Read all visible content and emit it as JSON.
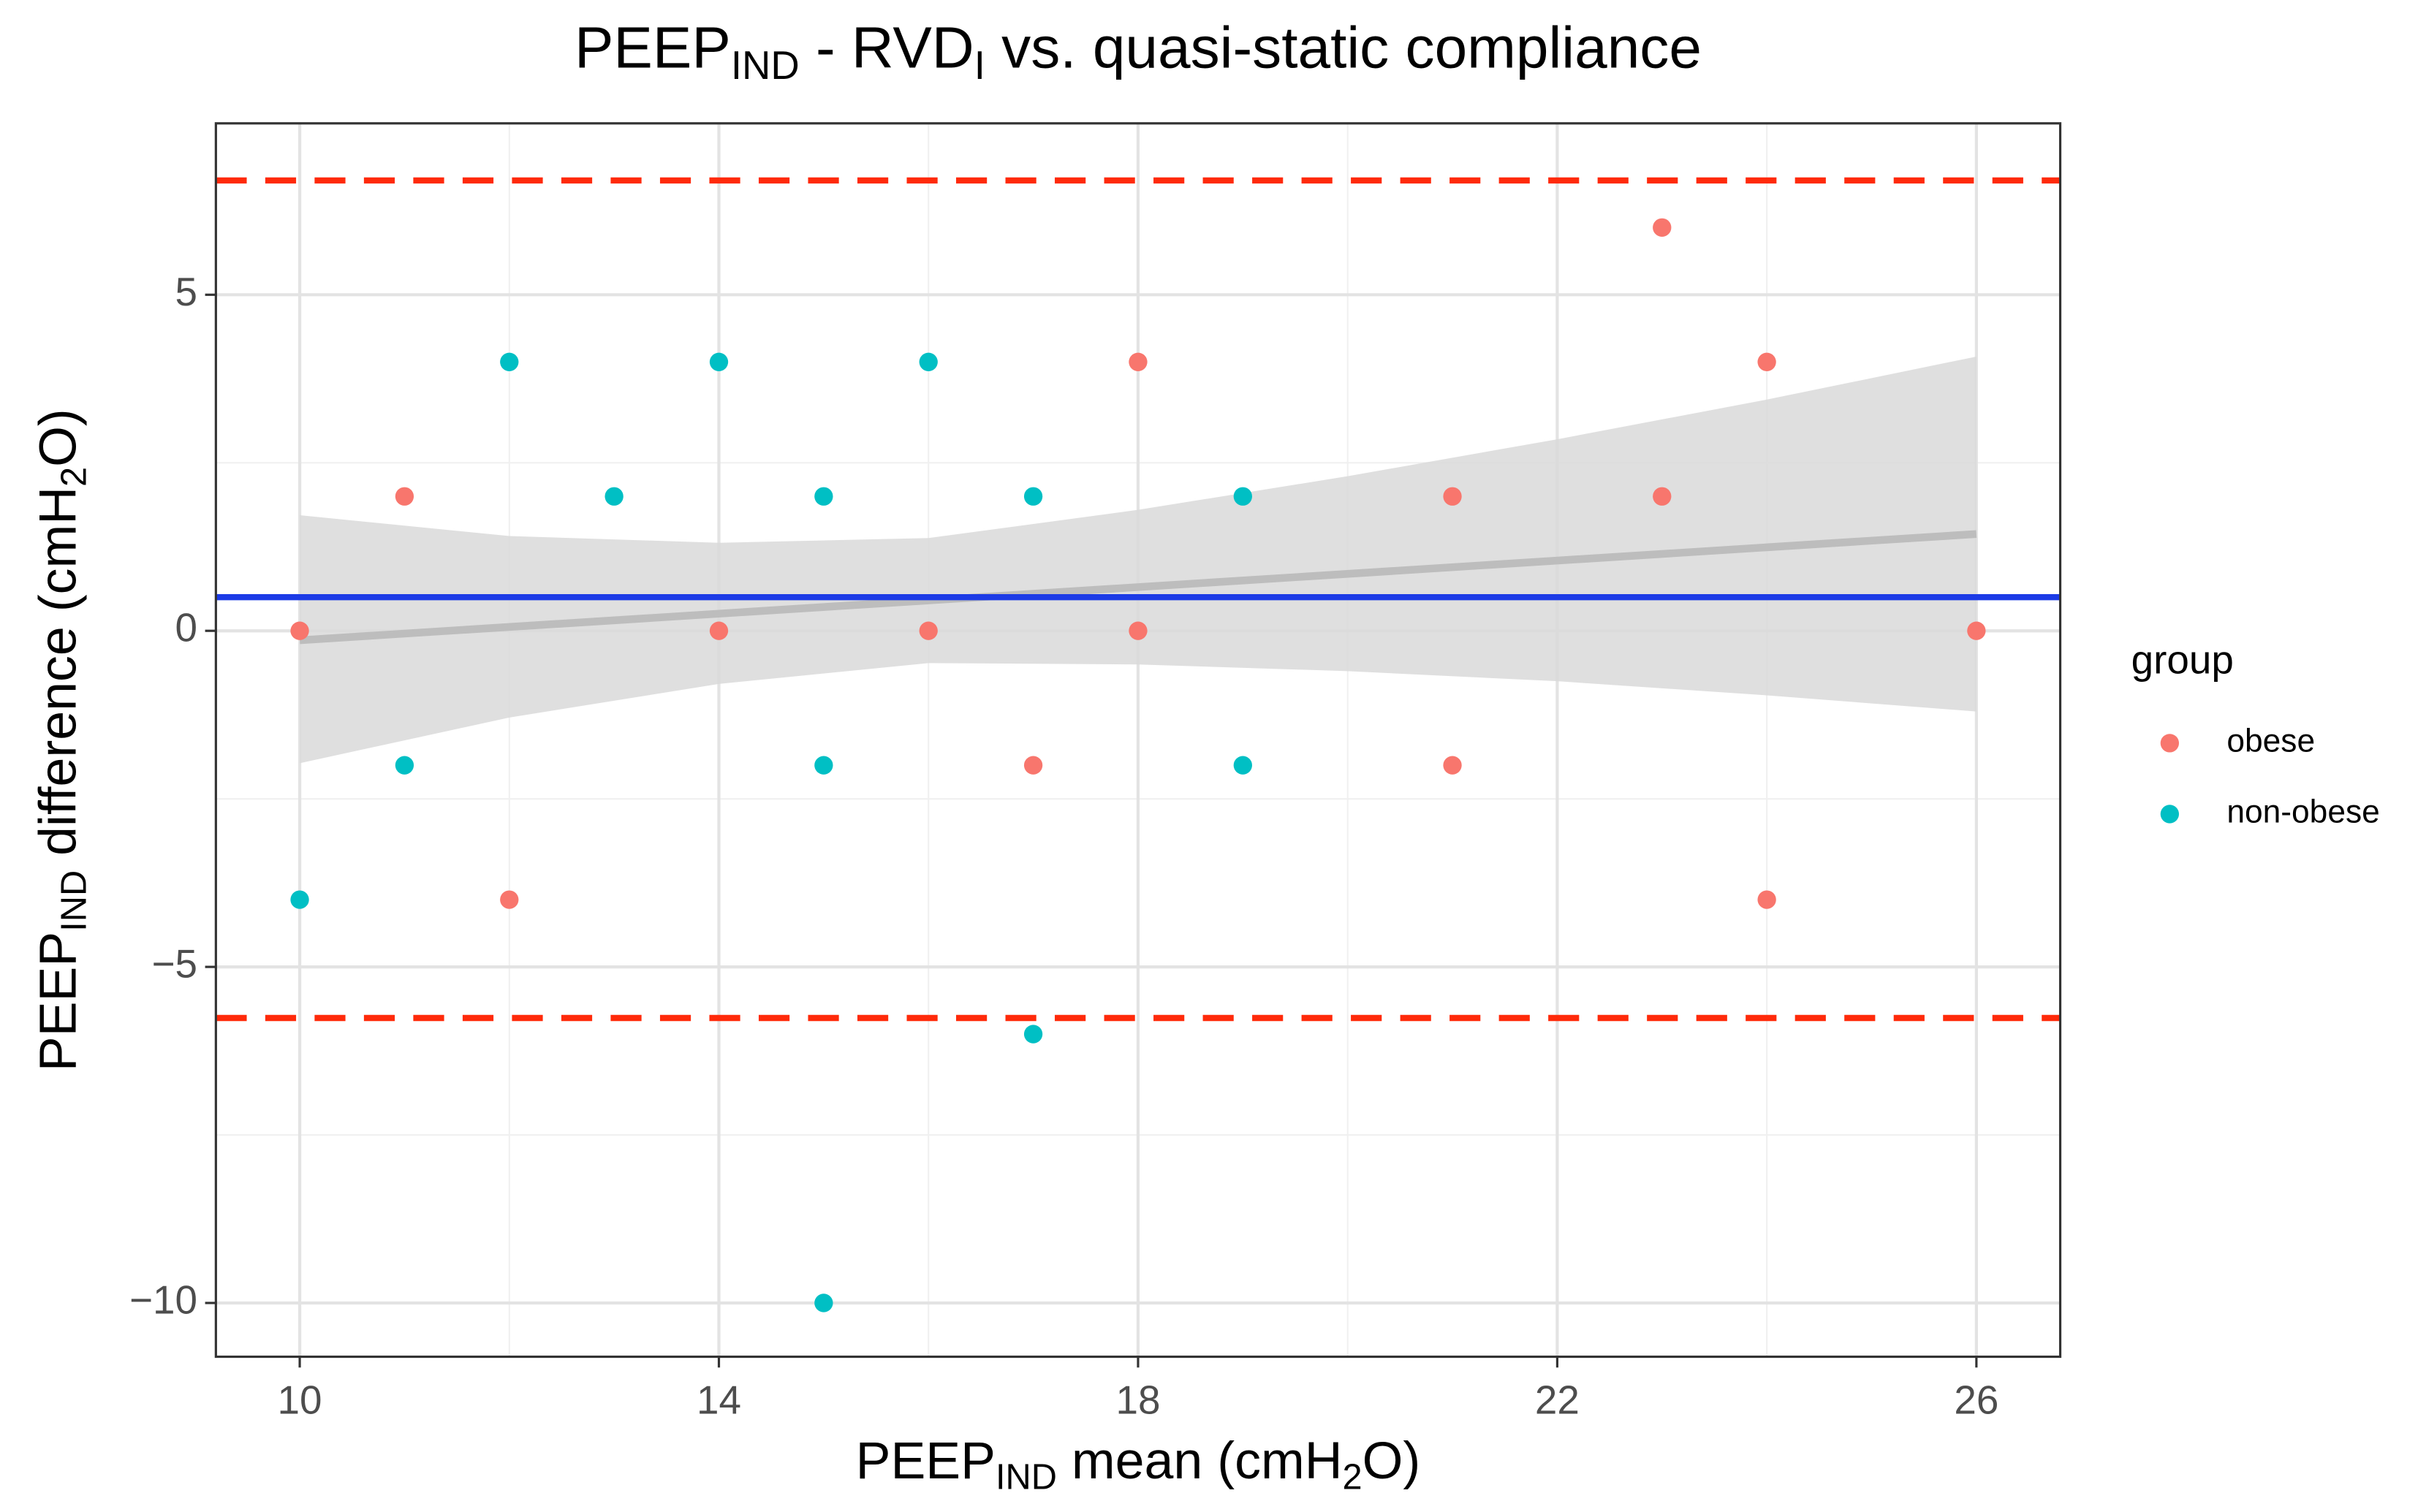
{
  "chart_data": {
    "type": "scatter",
    "title": [
      "PEEP",
      "IND",
      " - RVD",
      "I",
      " vs. quasi-static compliance"
    ],
    "xlabel": [
      "PEEP",
      "IND",
      " mean (cmH",
      "2",
      "O)"
    ],
    "ylabel": [
      "PEEP",
      "IND",
      " difference (cmH",
      "2",
      "O)"
    ],
    "xlim": [
      9.2,
      26.8
    ],
    "ylim": [
      -10.8,
      7.55
    ],
    "xticks": [
      10,
      14,
      18,
      22,
      26
    ],
    "xminor": [
      12,
      16,
      20,
      24
    ],
    "yticks": [
      {
        "value": -10,
        "label": "−10"
      },
      {
        "value": -5,
        "label": "−5"
      },
      0,
      5
    ],
    "yminor": [
      -7.5,
      -2.5,
      2.5
    ],
    "grid": true,
    "legend": {
      "title": "group",
      "position": "right"
    },
    "series": [
      {
        "name": "obese",
        "color": "#F8766D",
        "x": [
          10,
          11,
          12,
          14,
          16,
          17,
          18,
          18,
          21,
          21,
          23,
          23,
          24,
          24,
          26
        ],
        "values": [
          0,
          2,
          -4,
          0,
          0,
          -2,
          4,
          0,
          2,
          -2,
          6,
          2,
          4,
          -4,
          0
        ]
      },
      {
        "name": "non-obese",
        "color": "#00BFC4",
        "x": [
          10,
          11,
          12,
          13,
          14,
          15,
          15,
          15,
          16,
          17,
          17,
          19,
          19
        ],
        "values": [
          -4,
          -2,
          4,
          2,
          4,
          2,
          -2,
          -10,
          4,
          2,
          -6,
          2,
          -2
        ]
      }
    ],
    "fit": {
      "color": "#bdbdbd",
      "x": [
        10,
        26
      ],
      "values": [
        -0.14,
        1.44
      ]
    },
    "band": {
      "color": "#d9d9d9",
      "x": [
        10,
        12,
        14,
        16,
        18,
        20,
        22,
        24,
        26
      ],
      "lower": [
        -1.97,
        -1.29,
        -0.79,
        -0.48,
        -0.5,
        -0.6,
        -0.75,
        -0.96,
        -1.2
      ],
      "upper": [
        1.72,
        1.41,
        1.31,
        1.38,
        1.8,
        2.3,
        2.85,
        3.44,
        4.08
      ]
    },
    "hlines": [
      {
        "value": 0.5,
        "color": "#1c3be6",
        "dashed": false
      },
      {
        "value": 6.7,
        "color": "#ff2a0a",
        "dashed": true
      },
      {
        "value": -5.76,
        "color": "#ff2a0a",
        "dashed": true
      }
    ]
  }
}
